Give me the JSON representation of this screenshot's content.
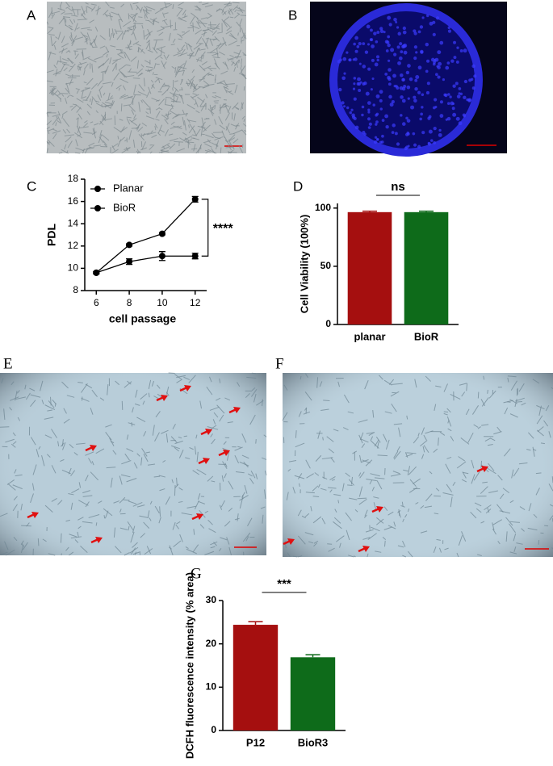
{
  "panel_labels": [
    "A",
    "B",
    "C",
    "D",
    "E",
    "F",
    "G"
  ],
  "chart_data": [
    {
      "type": "line",
      "x": [
        6,
        8,
        10,
        12
      ],
      "xlim": [
        5.3,
        12.7
      ],
      "xticks": [
        6,
        8,
        10,
        12
      ],
      "ylim": [
        8,
        18
      ],
      "yticks": [
        8,
        10,
        12,
        14,
        16,
        18
      ],
      "xlabel": "cell passage",
      "ylabel": "PDL",
      "annotation": "****",
      "series": [
        {
          "name": "Planar",
          "color": "#000000",
          "values": [
            9.6,
            12.1,
            13.1,
            16.2
          ],
          "errors": [
            0.1,
            0.1,
            0.1,
            0.25
          ]
        },
        {
          "name": "BioR",
          "color": "#000000",
          "values": [
            9.6,
            10.6,
            11.1,
            11.1
          ],
          "errors": [
            0.1,
            0.25,
            0.4,
            0.25
          ]
        }
      ]
    },
    {
      "type": "bar",
      "categories": [
        "planar",
        "BioR"
      ],
      "values": [
        96.5,
        96.5
      ],
      "errors": [
        0.8,
        0.8
      ],
      "colors": [
        "#a50f0f",
        "#0e6b1a"
      ],
      "ylim": [
        0,
        104
      ],
      "yticks": [
        0,
        50,
        100
      ],
      "ylabel": "Cell Viability (100%)",
      "annotation": "ns"
    },
    {
      "type": "bar",
      "categories": [
        "P12",
        "BioR3"
      ],
      "values": [
        24.4,
        16.9
      ],
      "errors": [
        0.7,
        0.6
      ],
      "colors": [
        "#a50f0f",
        "#0e6b1a"
      ],
      "ylim": [
        0,
        30
      ],
      "yticks": [
        0,
        10,
        20,
        30
      ],
      "ylabel": "DCFH fluorescence intensity (% area)",
      "annotation": "***"
    }
  ]
}
